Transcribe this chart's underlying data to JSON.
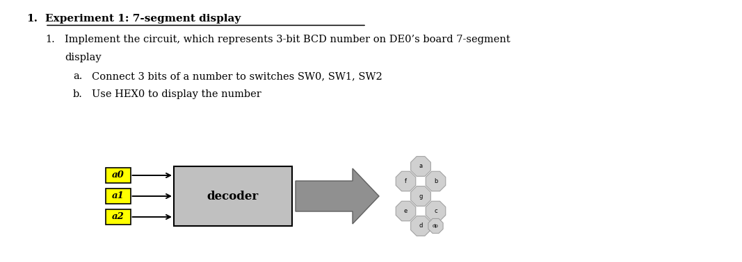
{
  "title_main": "Experiment 1: 7-segment display",
  "item1_line1": "Implement the circuit, which represents 3-bit BCD number on DE0’s board 7-segment",
  "item1_line2": "display",
  "item_a": "Connect 3 bits of a number to switches SW0, SW1, SW2",
  "item_b": "Use HEX0 to display the number",
  "labels": [
    "a0",
    "a1",
    "a2"
  ],
  "label_bg": "#FFFF00",
  "decoder_label": "decoder",
  "decoder_bg": "#C0C0C0",
  "decoder_border": "#000000",
  "arrow_body_color": "#909090",
  "arrow_edge_color": "#606060",
  "seg_bg": "#D0D0D0",
  "seg_border": "#999999",
  "background": "#FFFFFF",
  "text_indent1": 0.38,
  "text_indent2": 0.65,
  "text_indent3": 1.05,
  "text_indent4": 1.32
}
